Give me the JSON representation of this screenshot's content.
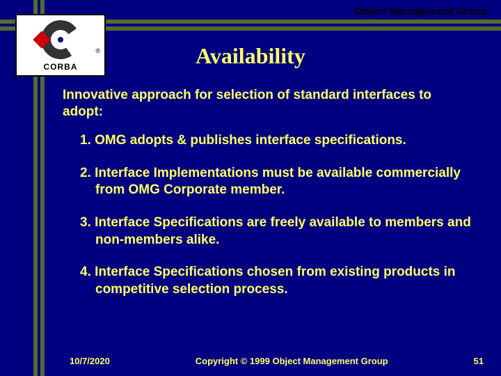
{
  "header": {
    "org_label": "Object Management Group"
  },
  "logo": {
    "text": "CORBA",
    "registered": "®"
  },
  "slide": {
    "title": "Availability",
    "intro": "Innovative approach for selection of standard interfaces to adopt:",
    "points": [
      "1. OMG adopts & publishes interface specifications.",
      "2. Interface Implementations must be available commercially from OMG Corporate member.",
      "3. Interface Specifications are freely available to members and non-members alike.",
      "4. Interface Specifications chosen from existing products in competitive selection process."
    ]
  },
  "footer": {
    "date": "10/7/2020",
    "copyright": "Copyright © 1999 Object Management Group",
    "page_number": "51"
  },
  "colors": {
    "background": "#000080",
    "text_accent": "#ffff66",
    "bar": "#556b2f",
    "logo_bg": "#ffffff",
    "logo_border": "#000000",
    "logo_ring": "#333333",
    "logo_diamond": "#cc0000"
  }
}
